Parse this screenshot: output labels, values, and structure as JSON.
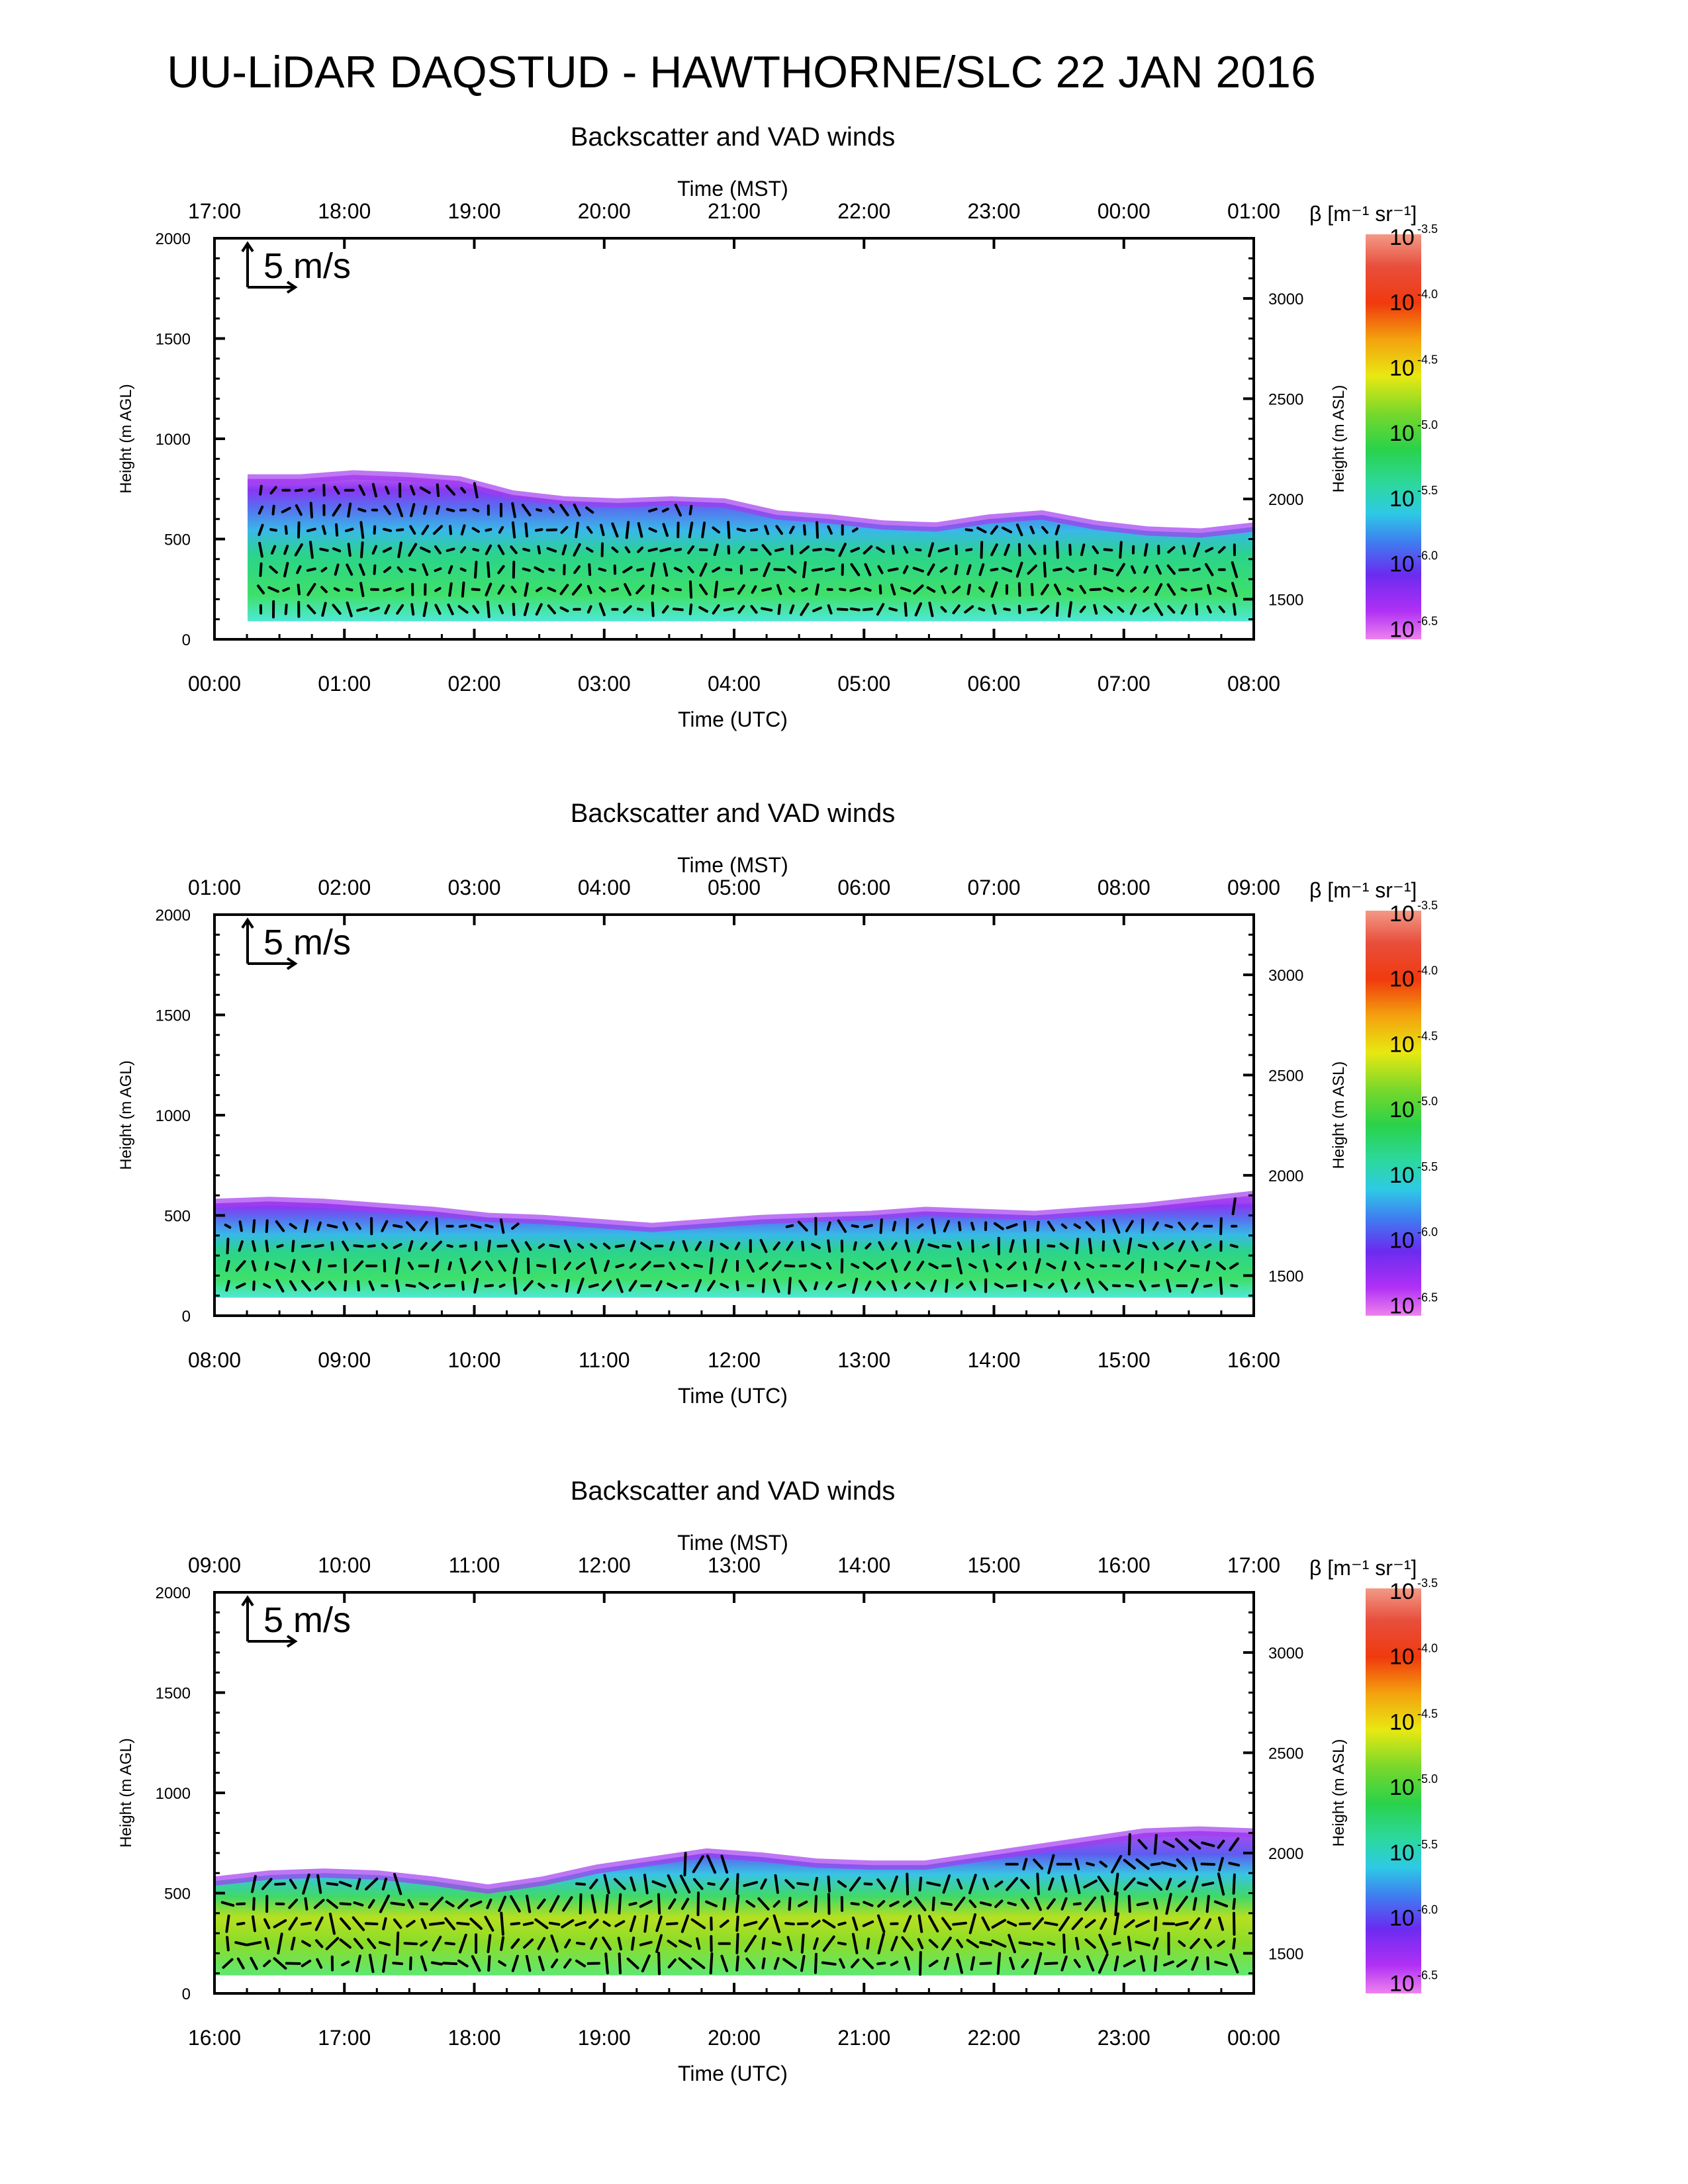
{
  "figure": {
    "title": "UU-LiDAR DAQSTUD - HAWTHORNE/SLC 22 JAN 2016"
  },
  "chart_data": [
    {
      "type": "heatmap",
      "title": "Backscatter and VAD winds",
      "top_axis_label": "Time (MST)",
      "xlabel": "Time (UTC)",
      "ylabel": "Height (m AGL)",
      "y2label": "Height (m ASL)",
      "colorbar_label": "β [m⁻¹ sr⁻¹]",
      "wind_scale_label": "5 m/s",
      "x_ticks_utc": [
        "00:00",
        "01:00",
        "02:00",
        "03:00",
        "04:00",
        "05:00",
        "06:00",
        "07:00",
        "08:00"
      ],
      "x_ticks_mst": [
        "17:00",
        "18:00",
        "19:00",
        "20:00",
        "21:00",
        "22:00",
        "23:00",
        "00:00",
        "01:00"
      ],
      "y_ticks": [
        0,
        500,
        1000,
        1500,
        2000
      ],
      "y2_ticks": [
        1500,
        2000,
        2500,
        3000
      ],
      "ylim": [
        0,
        2000
      ],
      "y2lim": [
        1300,
        3300
      ],
      "colorbar_ticks": [
        "-3.5",
        "-4.0",
        "-4.5",
        "-5.0",
        "-5.5",
        "-6.0",
        "-6.5"
      ],
      "colorbar_range_log10": [
        -6.6,
        -3.5
      ],
      "echo_top_m": [
        800,
        800,
        820,
        810,
        790,
        720,
        690,
        680,
        690,
        680,
        620,
        600,
        570,
        560,
        600,
        620,
        570,
        540,
        530,
        560
      ],
      "echo_base_m": 90,
      "wind_extent": "near-surface to ~700 m, winds weak-to-moderate"
    },
    {
      "type": "heatmap",
      "title": "Backscatter and VAD winds",
      "top_axis_label": "Time (MST)",
      "xlabel": "Time (UTC)",
      "ylabel": "Height (m AGL)",
      "y2label": "Height (m ASL)",
      "colorbar_label": "β [m⁻¹ sr⁻¹]",
      "wind_scale_label": "5 m/s",
      "x_ticks_utc": [
        "08:00",
        "09:00",
        "10:00",
        "11:00",
        "12:00",
        "13:00",
        "14:00",
        "15:00",
        "16:00"
      ],
      "x_ticks_mst": [
        "01:00",
        "02:00",
        "03:00",
        "04:00",
        "05:00",
        "06:00",
        "07:00",
        "08:00",
        "09:00"
      ],
      "y_ticks": [
        0,
        500,
        1000,
        1500,
        2000
      ],
      "y2_ticks": [
        1500,
        2000,
        2500,
        3000
      ],
      "ylim": [
        0,
        2000
      ],
      "y2lim": [
        1300,
        3300
      ],
      "colorbar_ticks": [
        "-3.5",
        "-4.0",
        "-4.5",
        "-5.0",
        "-5.5",
        "-6.0",
        "-6.5"
      ],
      "colorbar_range_log10": [
        -6.6,
        -3.5
      ],
      "echo_top_m": [
        560,
        570,
        560,
        540,
        520,
        490,
        480,
        460,
        440,
        460,
        480,
        490,
        500,
        520,
        510,
        500,
        520,
        540,
        570,
        600
      ],
      "echo_base_m": 90,
      "wind_extent": "below ~600 m, strong winds near 15:30 UTC"
    },
    {
      "type": "heatmap",
      "title": "Backscatter and VAD winds",
      "top_axis_label": "Time (MST)",
      "xlabel": "Time (UTC)",
      "ylabel": "Height (m AGL)",
      "y2label": "Height (m ASL)",
      "colorbar_label": "β [m⁻¹ sr⁻¹]",
      "wind_scale_label": "5 m/s",
      "x_ticks_utc": [
        "16:00",
        "17:00",
        "18:00",
        "19:00",
        "20:00",
        "21:00",
        "22:00",
        "23:00",
        "00:00"
      ],
      "x_ticks_mst": [
        "09:00",
        "10:00",
        "11:00",
        "12:00",
        "13:00",
        "14:00",
        "15:00",
        "16:00",
        "17:00"
      ],
      "y_ticks": [
        0,
        500,
        1000,
        1500,
        2000
      ],
      "y2_ticks": [
        1500,
        2000,
        2500,
        3000
      ],
      "ylim": [
        0,
        2000
      ],
      "y2lim": [
        1300,
        3300
      ],
      "colorbar_ticks": [
        "-3.5",
        "-4.0",
        "-4.5",
        "-5.0",
        "-5.5",
        "-6.0",
        "-6.5"
      ],
      "colorbar_range_log10": [
        -6.6,
        -3.5
      ],
      "echo_top_m": [
        560,
        590,
        600,
        590,
        560,
        520,
        560,
        620,
        660,
        700,
        680,
        650,
        640,
        640,
        680,
        720,
        760,
        800,
        810,
        800
      ],
      "echo_base_m": 90,
      "wind_extent": "surface to ~800 m, strongest winds afternoon"
    }
  ]
}
